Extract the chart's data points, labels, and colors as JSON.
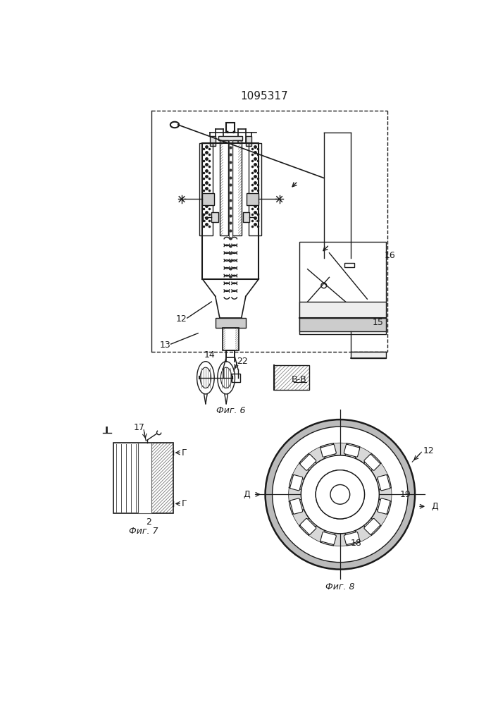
{
  "title": "1095317",
  "bg_color": "#ffffff",
  "line_color": "#1a1a1a",
  "fig_labels": {
    "fig6": "Фиг. 6",
    "fig7": "Фиг. 7",
    "fig8": "Фиг. 8",
    "vv": "В-В"
  },
  "labels": {
    "12": "12",
    "13": "13",
    "14": "14",
    "15": "15",
    "16": "16",
    "17": "17",
    "18": "18",
    "19": "19",
    "22": "22",
    "2": "2",
    "I": "I",
    "D": "Д",
    "G": "Г"
  }
}
